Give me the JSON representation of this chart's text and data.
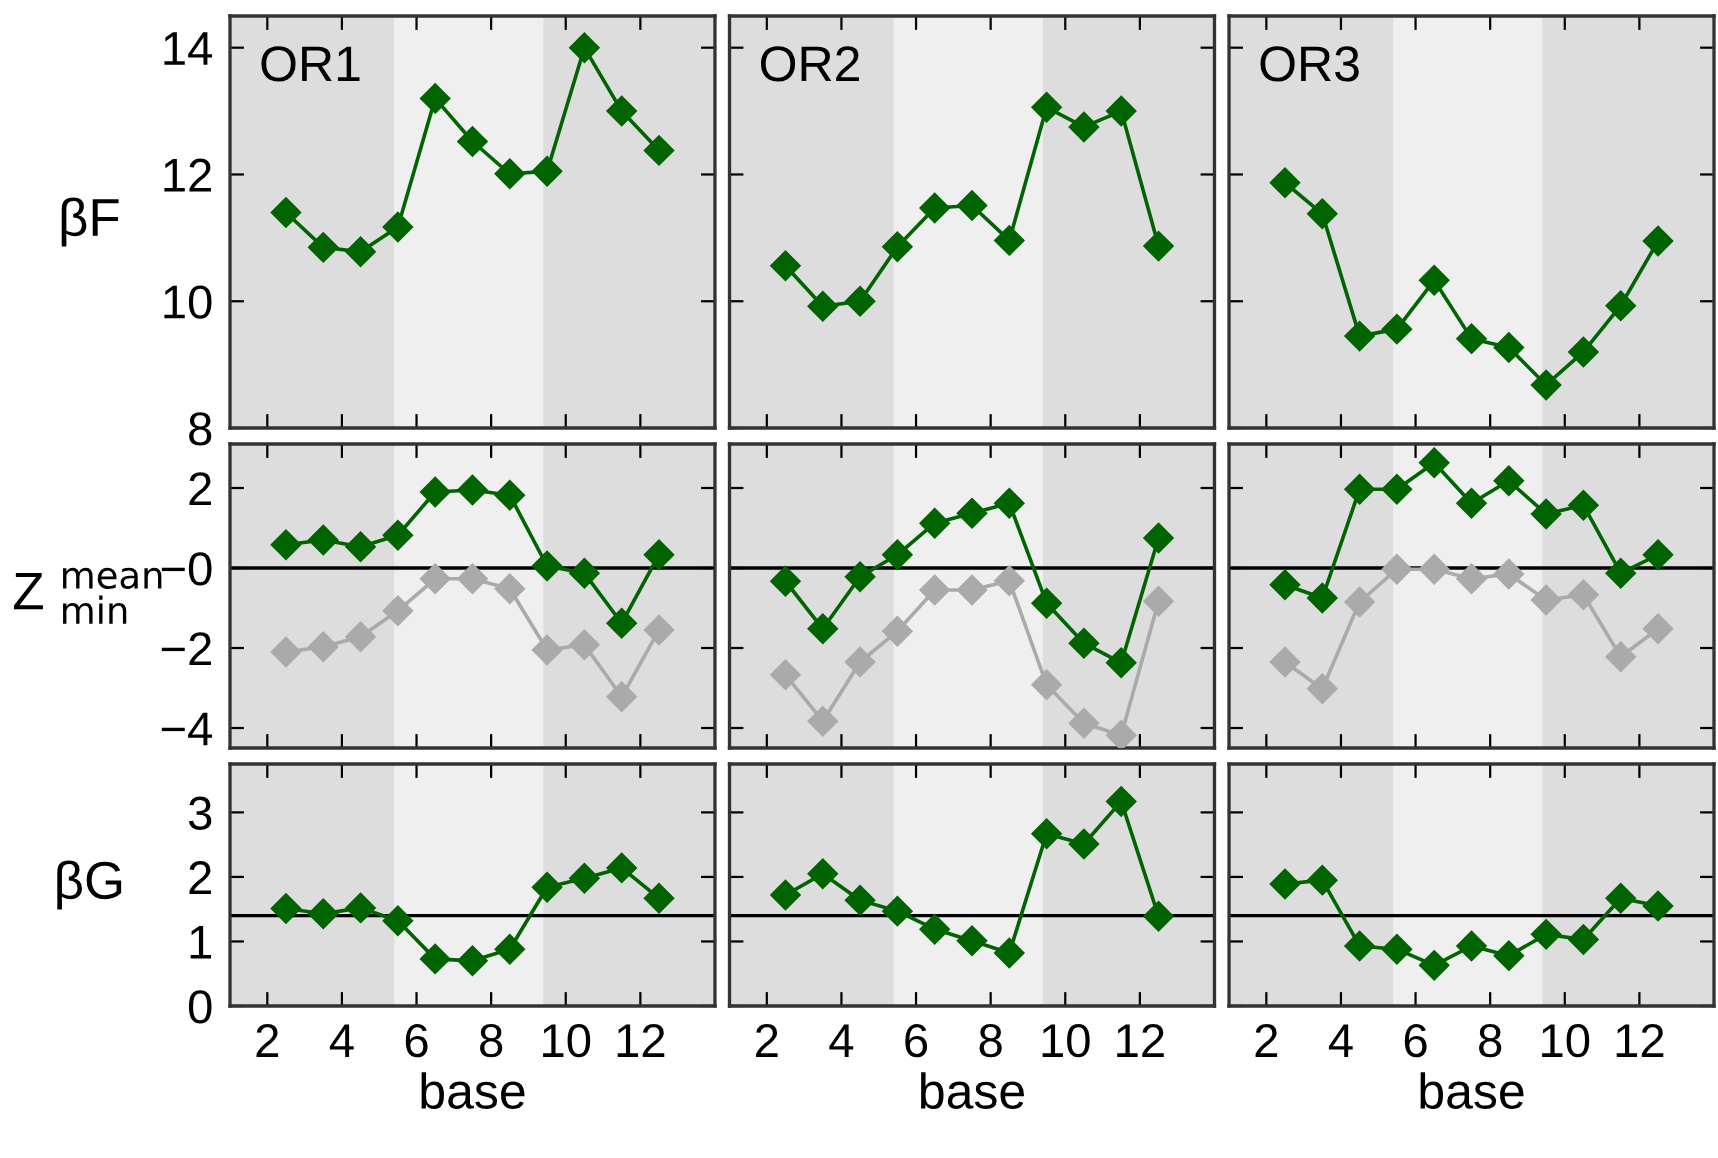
{
  "chart_data": [
    {
      "type": "line",
      "title": "OR1",
      "ylabel": "βF",
      "x": [
        2.5,
        3.5,
        4.5,
        5.5,
        6.5,
        7.5,
        8.5,
        9.5,
        10.5,
        11.5,
        12.5
      ],
      "xlim": [
        1,
        14
      ],
      "xticks": [
        2,
        4,
        6,
        8,
        10,
        12
      ],
      "ylim": [
        8,
        14.5
      ],
      "yticks": [
        8,
        10,
        12,
        14
      ],
      "tick_labels": "y",
      "marker": "diamond",
      "bands": [
        {
          "axis": "x",
          "from": 5.4,
          "to": 9.4,
          "color": "#efefef"
        }
      ],
      "series": [
        {
          "color": "#006400",
          "values": [
            11.4,
            10.85,
            10.78,
            11.17,
            13.2,
            12.52,
            12.01,
            12.05,
            14.0,
            13.0,
            12.38
          ]
        }
      ]
    },
    {
      "type": "line",
      "title": "OR2",
      "x": [
        2.5,
        3.5,
        4.5,
        5.5,
        6.5,
        7.5,
        8.5,
        9.5,
        10.5,
        11.5,
        12.5
      ],
      "xlim": [
        1,
        14
      ],
      "xticks": [
        2,
        4,
        6,
        8,
        10,
        12
      ],
      "ylim": [
        8,
        14.5
      ],
      "yticks": [
        8,
        10,
        12,
        14
      ],
      "tick_labels": false,
      "marker": "diamond",
      "bands": [
        {
          "axis": "x",
          "from": 5.4,
          "to": 9.4,
          "color": "#efefef"
        }
      ],
      "series": [
        {
          "color": "#006400",
          "values": [
            10.56,
            9.92,
            10.0,
            10.86,
            11.47,
            11.51,
            10.96,
            13.06,
            12.75,
            13.0,
            10.87
          ]
        }
      ]
    },
    {
      "type": "line",
      "title": "OR3",
      "x": [
        2.5,
        3.5,
        4.5,
        5.5,
        6.5,
        7.5,
        8.5,
        9.5,
        10.5,
        11.5,
        12.5
      ],
      "xlim": [
        1,
        14
      ],
      "xticks": [
        2,
        4,
        6,
        8,
        10,
        12
      ],
      "ylim": [
        8,
        14.5
      ],
      "yticks": [
        8,
        10,
        12,
        14
      ],
      "tick_labels": false,
      "marker": "diamond",
      "bands": [
        {
          "axis": "x",
          "from": 5.4,
          "to": 9.4,
          "color": "#efefef"
        }
      ],
      "series": [
        {
          "color": "#006400",
          "values": [
            11.87,
            11.38,
            9.45,
            9.56,
            10.33,
            9.41,
            9.27,
            8.68,
            9.2,
            9.93,
            10.95
          ]
        }
      ]
    },
    {
      "type": "line",
      "ylabel": "Z $^{mean}$$_{min}$",
      "x": [
        2.5,
        3.5,
        4.5,
        5.5,
        6.5,
        7.5,
        8.5,
        9.5,
        10.5,
        11.5,
        12.5
      ],
      "xlim": [
        1,
        14
      ],
      "xticks": [
        2,
        4,
        6,
        8,
        10,
        12
      ],
      "ylim": [
        -4.5,
        3.1
      ],
      "yticks": [
        2,
        {
          "value": 0,
          "label": "−0"
        },
        {
          "value": -2,
          "label": "−2"
        },
        {
          "value": -4,
          "label": "−4"
        }
      ],
      "tick_labels": "y",
      "marker": "diamond",
      "bands": [
        {
          "axis": "x",
          "from": 5.4,
          "to": 9.4,
          "color": "#efefef"
        }
      ],
      "ref_lines": [
        {
          "axis": "y",
          "value": 0,
          "color": "#000000"
        }
      ],
      "series": [
        {
          "color": "#aaaaaa",
          "values": [
            -2.1,
            -1.97,
            -1.72,
            -1.07,
            -0.27,
            -0.27,
            -0.52,
            -2.05,
            -1.92,
            -3.22,
            -1.55
          ]
        },
        {
          "color": "#006400",
          "values": [
            0.58,
            0.7,
            0.53,
            0.82,
            1.9,
            1.95,
            1.82,
            0.05,
            -0.13,
            -1.38,
            0.33
          ]
        }
      ]
    },
    {
      "type": "line",
      "x": [
        2.5,
        3.5,
        4.5,
        5.5,
        6.5,
        7.5,
        8.5,
        9.5,
        10.5,
        11.5,
        12.5
      ],
      "xlim": [
        1,
        14
      ],
      "xticks": [
        2,
        4,
        6,
        8,
        10,
        12
      ],
      "ylim": [
        -4.5,
        3.1
      ],
      "yticks": [
        2,
        0,
        -2,
        -4
      ],
      "tick_labels": false,
      "marker": "diamond",
      "bands": [
        {
          "axis": "x",
          "from": 5.4,
          "to": 9.4,
          "color": "#efefef"
        }
      ],
      "ref_lines": [
        {
          "axis": "y",
          "value": 0,
          "color": "#000000"
        }
      ],
      "series": [
        {
          "color": "#aaaaaa",
          "values": [
            -2.67,
            -3.83,
            -2.35,
            -1.58,
            -0.55,
            -0.55,
            -0.32,
            -2.92,
            -3.88,
            -4.18,
            -0.83
          ]
        },
        {
          "color": "#006400",
          "values": [
            -0.33,
            -1.52,
            -0.22,
            0.33,
            1.12,
            1.37,
            1.62,
            -0.88,
            -1.88,
            -2.37,
            0.75
          ]
        }
      ]
    },
    {
      "type": "line",
      "x": [
        2.5,
        3.5,
        4.5,
        5.5,
        6.5,
        7.5,
        8.5,
        9.5,
        10.5,
        11.5,
        12.5
      ],
      "xlim": [
        1,
        14
      ],
      "xticks": [
        2,
        4,
        6,
        8,
        10,
        12
      ],
      "ylim": [
        -4.5,
        3.1
      ],
      "yticks": [
        2,
        0,
        -2,
        -4
      ],
      "tick_labels": false,
      "marker": "diamond",
      "bands": [
        {
          "axis": "x",
          "from": 5.4,
          "to": 9.4,
          "color": "#efefef"
        }
      ],
      "ref_lines": [
        {
          "axis": "y",
          "value": 0,
          "color": "#000000"
        }
      ],
      "series": [
        {
          "color": "#aaaaaa",
          "values": [
            -2.35,
            -3.02,
            -0.85,
            -0.03,
            -0.03,
            -0.27,
            -0.15,
            -0.8,
            -0.67,
            -2.22,
            -1.52
          ]
        },
        {
          "color": "#006400",
          "values": [
            -0.42,
            -0.75,
            1.97,
            1.97,
            2.63,
            1.62,
            2.18,
            1.35,
            1.57,
            -0.13,
            0.33
          ]
        }
      ]
    },
    {
      "type": "line",
      "ylabel": "βG",
      "xlabel": "base",
      "x": [
        2.5,
        3.5,
        4.5,
        5.5,
        6.5,
        7.5,
        8.5,
        9.5,
        10.5,
        11.5,
        12.5
      ],
      "xlim": [
        1,
        14
      ],
      "xticks": [
        2,
        4,
        6,
        8,
        10,
        12
      ],
      "ylim": [
        0,
        3.75
      ],
      "yticks": [
        0,
        1,
        2,
        3
      ],
      "marker": "diamond",
      "bands": [
        {
          "axis": "x",
          "from": 5.4,
          "to": 9.4,
          "color": "#efefef"
        }
      ],
      "ref_lines": [
        {
          "axis": "y",
          "value": 1.4,
          "color": "#000000"
        }
      ],
      "series": [
        {
          "color": "#006400",
          "values": [
            1.51,
            1.43,
            1.52,
            1.32,
            0.73,
            0.7,
            0.88,
            1.84,
            1.98,
            2.14,
            1.67
          ]
        }
      ]
    },
    {
      "type": "line",
      "xlabel": "base",
      "x": [
        2.5,
        3.5,
        4.5,
        5.5,
        6.5,
        7.5,
        8.5,
        9.5,
        10.5,
        11.5,
        12.5
      ],
      "xlim": [
        1,
        14
      ],
      "xticks": [
        2,
        4,
        6,
        8,
        10,
        12
      ],
      "ylim": [
        0,
        3.75
      ],
      "yticks": [
        0,
        1,
        2,
        3
      ],
      "tick_labels": "x",
      "marker": "diamond",
      "bands": [
        {
          "axis": "x",
          "from": 5.4,
          "to": 9.4,
          "color": "#efefef"
        }
      ],
      "ref_lines": [
        {
          "axis": "y",
          "value": 1.4,
          "color": "#000000"
        }
      ],
      "series": [
        {
          "color": "#006400",
          "values": [
            1.72,
            2.05,
            1.64,
            1.47,
            1.19,
            1.01,
            0.82,
            2.67,
            2.51,
            3.17,
            1.39
          ]
        }
      ]
    },
    {
      "type": "line",
      "xlabel": "base",
      "x": [
        2.5,
        3.5,
        4.5,
        5.5,
        6.5,
        7.5,
        8.5,
        9.5,
        10.5,
        11.5,
        12.5
      ],
      "xlim": [
        1,
        14
      ],
      "xticks": [
        2,
        4,
        6,
        8,
        10,
        12
      ],
      "ylim": [
        0,
        3.75
      ],
      "yticks": [
        0,
        1,
        2,
        3
      ],
      "tick_labels": "x",
      "marker": "diamond",
      "bands": [
        {
          "axis": "x",
          "from": 5.4,
          "to": 9.4,
          "color": "#efefef"
        }
      ],
      "ref_lines": [
        {
          "axis": "y",
          "value": 1.4,
          "color": "#000000"
        }
      ],
      "series": [
        {
          "color": "#006400",
          "values": [
            1.89,
            1.95,
            0.93,
            0.88,
            0.63,
            0.93,
            0.78,
            1.11,
            1.03,
            1.67,
            1.55
          ]
        }
      ]
    }
  ]
}
